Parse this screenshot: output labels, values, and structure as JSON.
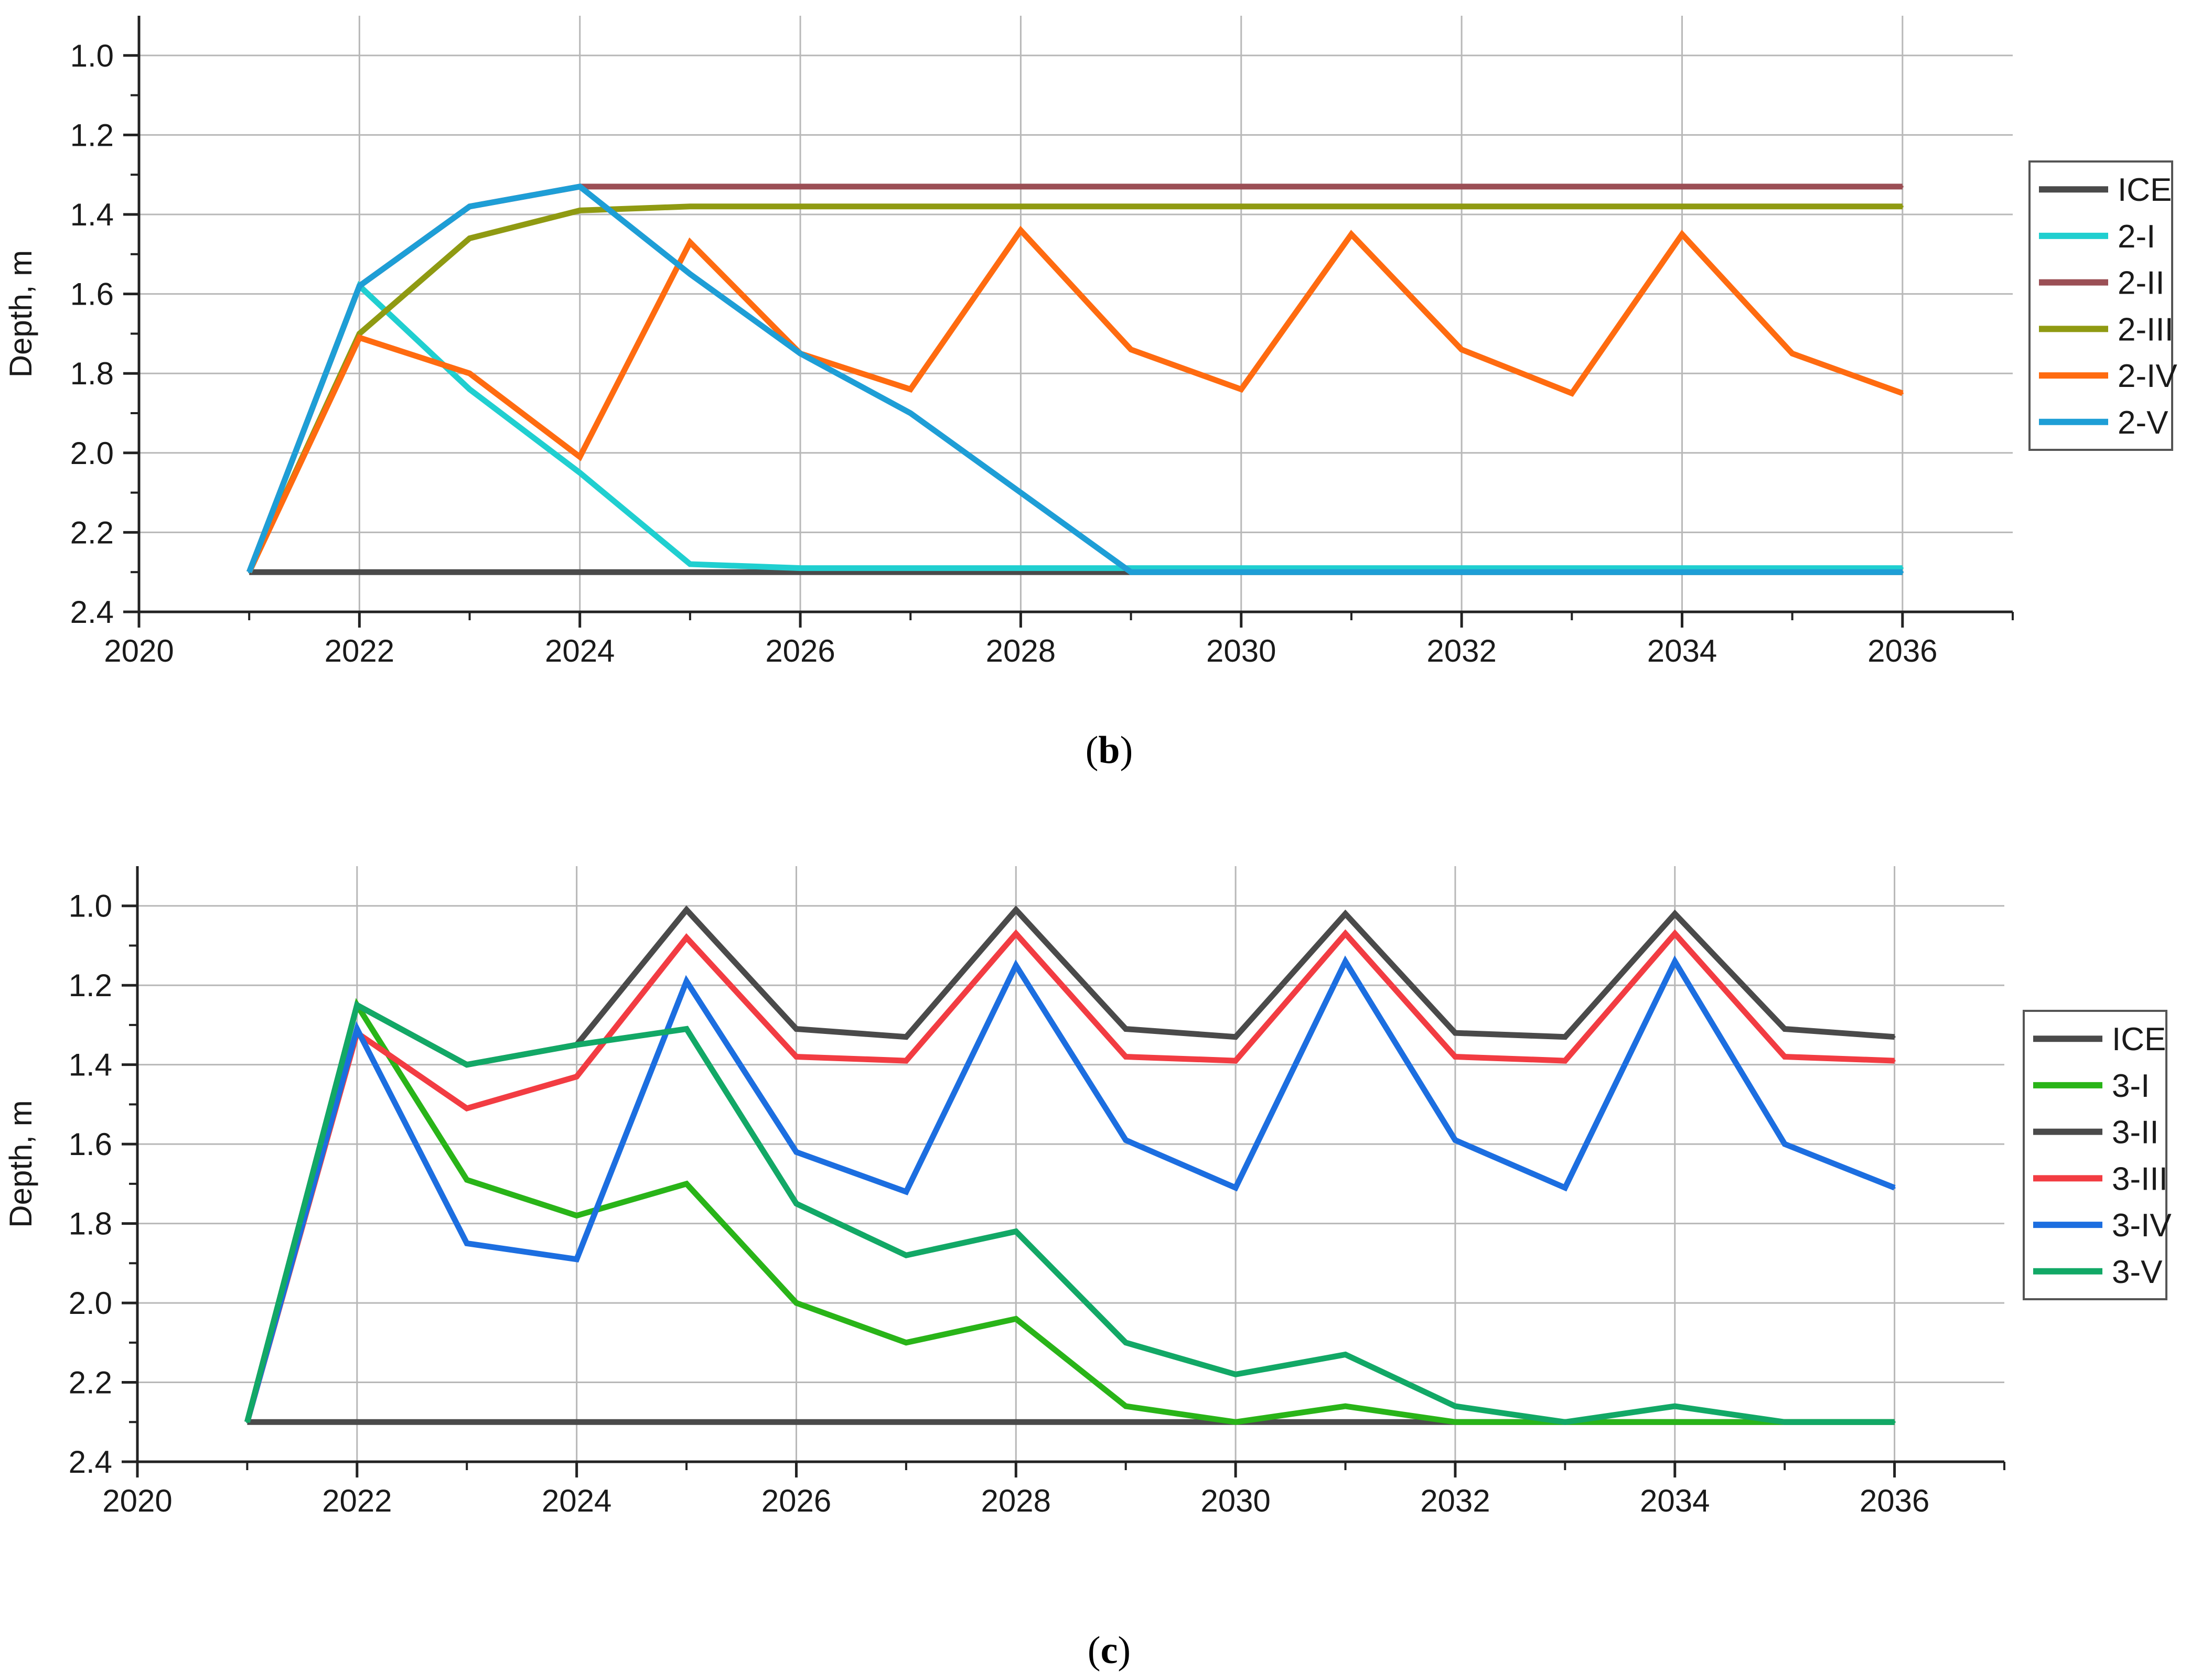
{
  "chart_data": [
    {
      "type": "line",
      "panel": "b",
      "caption_letter": "b",
      "caption": "(b)",
      "title": "",
      "xlabel": "",
      "ylabel": "Depth, m",
      "xlim": [
        2020,
        2037
      ],
      "ylim": [
        0.9,
        2.4
      ],
      "y_inverted": true,
      "grid": true,
      "legend_position": "right",
      "x_ticks": [
        2020,
        2022,
        2024,
        2026,
        2028,
        2030,
        2032,
        2034,
        2036
      ],
      "x_tick_labels": [
        "2020",
        "2022",
        "2024",
        "2026",
        "2028",
        "2030",
        "2032",
        "2034",
        "2036"
      ],
      "y_ticks": [
        1.0,
        1.2,
        1.4,
        1.6,
        1.8,
        2.0,
        2.2,
        2.4
      ],
      "y_tick_labels": [
        "1.0",
        "1.2",
        "1.4",
        "1.6",
        "1.8",
        "2.0",
        "2.2",
        "2.4"
      ],
      "x": [
        2021,
        2022,
        2023,
        2024,
        2025,
        2026,
        2027,
        2028,
        2029,
        2030,
        2031,
        2032,
        2033,
        2034,
        2035,
        2036
      ],
      "series": [
        {
          "name": "ICE",
          "color": "#4a4a4a",
          "values": [
            2.3,
            2.3,
            2.3,
            2.3,
            2.3,
            2.3,
            2.3,
            2.3,
            2.3,
            2.3,
            2.3,
            2.3,
            2.3,
            2.3,
            2.3,
            2.3
          ]
        },
        {
          "name": "2-I",
          "color": "#20cfd0",
          "values": [
            2.3,
            1.58,
            1.84,
            2.05,
            2.28,
            2.29,
            2.29,
            2.29,
            2.29,
            2.29,
            2.29,
            2.29,
            2.29,
            2.29,
            2.29,
            2.29
          ]
        },
        {
          "name": "2-II",
          "color": "#9b4f55",
          "values": [
            2.3,
            1.58,
            1.38,
            1.33,
            1.33,
            1.33,
            1.33,
            1.33,
            1.33,
            1.33,
            1.33,
            1.33,
            1.33,
            1.33,
            1.33,
            1.33
          ]
        },
        {
          "name": "2-III",
          "color": "#8f9a12",
          "values": [
            2.3,
            1.7,
            1.46,
            1.39,
            1.38,
            1.38,
            1.38,
            1.38,
            1.38,
            1.38,
            1.38,
            1.38,
            1.38,
            1.38,
            1.38,
            1.38
          ]
        },
        {
          "name": "2-IV",
          "color": "#ff6b10",
          "values": [
            2.3,
            1.71,
            1.8,
            2.01,
            1.47,
            1.75,
            1.84,
            1.44,
            1.74,
            1.84,
            1.45,
            1.74,
            1.85,
            1.45,
            1.75,
            1.85
          ]
        },
        {
          "name": "2-V",
          "color": "#1e9ed6",
          "values": [
            2.3,
            1.58,
            1.38,
            1.33,
            1.55,
            1.75,
            1.9,
            2.1,
            2.3,
            2.3,
            2.3,
            2.3,
            2.3,
            2.3,
            2.3,
            2.3
          ]
        }
      ]
    },
    {
      "type": "line",
      "panel": "c",
      "caption_letter": "c",
      "caption": "(c)",
      "title": "",
      "xlabel": "",
      "ylabel": "Depth, m",
      "xlim": [
        2020,
        2037
      ],
      "ylim": [
        0.9,
        2.4
      ],
      "y_inverted": true,
      "grid": true,
      "legend_position": "right",
      "x_ticks": [
        2020,
        2022,
        2024,
        2026,
        2028,
        2030,
        2032,
        2034,
        2036
      ],
      "x_tick_labels": [
        "2020",
        "2022",
        "2024",
        "2026",
        "2028",
        "2030",
        "2032",
        "2034",
        "2036"
      ],
      "y_ticks": [
        1.0,
        1.2,
        1.4,
        1.6,
        1.8,
        2.0,
        2.2,
        2.4
      ],
      "y_tick_labels": [
        "1.0",
        "1.2",
        "1.4",
        "1.6",
        "1.8",
        "2.0",
        "2.2",
        "2.4"
      ],
      "x": [
        2021,
        2022,
        2023,
        2024,
        2025,
        2026,
        2027,
        2028,
        2029,
        2030,
        2031,
        2032,
        2033,
        2034,
        2035,
        2036
      ],
      "series": [
        {
          "name": "ICE",
          "color": "#4a4a4a",
          "values": [
            2.3,
            2.3,
            2.3,
            2.3,
            2.3,
            2.3,
            2.3,
            2.3,
            2.3,
            2.3,
            2.3,
            2.3,
            2.3,
            2.3,
            2.3,
            2.3
          ]
        },
        {
          "name": "3-I",
          "color": "#29b418",
          "values": [
            2.3,
            1.25,
            1.69,
            1.78,
            1.7,
            2.0,
            2.1,
            2.04,
            2.26,
            2.3,
            2.26,
            2.3,
            2.3,
            2.3,
            2.3,
            2.3
          ]
        },
        {
          "name": "3-II",
          "color": "#4a4a4a",
          "values": [
            2.3,
            1.25,
            1.4,
            1.35,
            1.01,
            1.31,
            1.33,
            1.01,
            1.31,
            1.33,
            1.02,
            1.32,
            1.33,
            1.02,
            1.31,
            1.33
          ]
        },
        {
          "name": "3-III",
          "color": "#f23c42",
          "values": [
            2.3,
            1.32,
            1.51,
            1.43,
            1.08,
            1.38,
            1.39,
            1.07,
            1.38,
            1.39,
            1.07,
            1.38,
            1.39,
            1.07,
            1.38,
            1.39
          ]
        },
        {
          "name": "3-IV",
          "color": "#1c6ee0",
          "values": [
            2.3,
            1.31,
            1.85,
            1.89,
            1.19,
            1.62,
            1.72,
            1.15,
            1.59,
            1.71,
            1.14,
            1.59,
            1.71,
            1.14,
            1.6,
            1.71
          ]
        },
        {
          "name": "3-V",
          "color": "#12a866",
          "values": [
            2.3,
            1.25,
            1.4,
            1.35,
            1.31,
            1.75,
            1.88,
            1.82,
            2.1,
            2.18,
            2.13,
            2.26,
            2.3,
            2.26,
            2.3,
            2.3
          ]
        }
      ]
    }
  ]
}
